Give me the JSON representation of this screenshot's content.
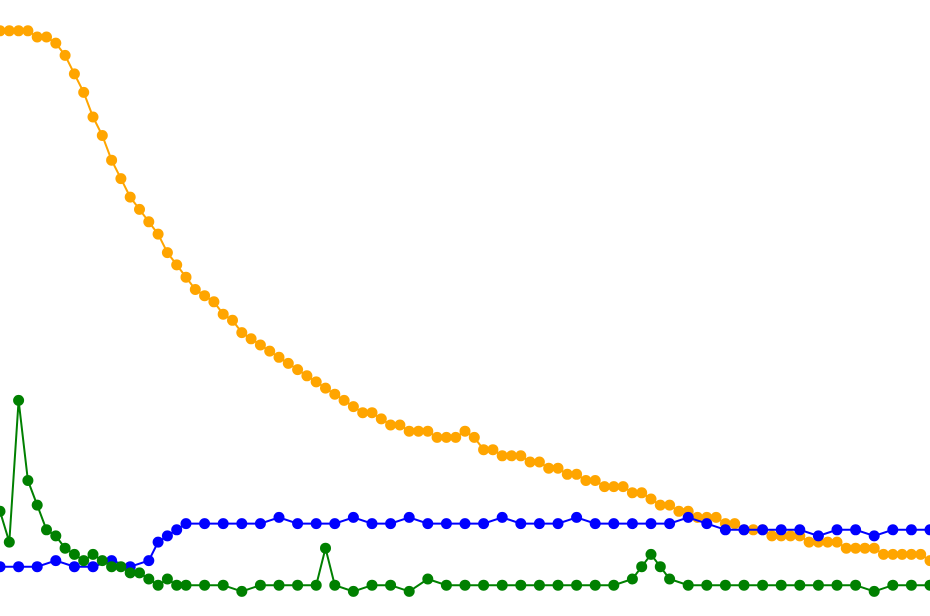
{
  "chart_data": {
    "type": "line",
    "title": "",
    "xlabel": "",
    "ylabel": "",
    "grid": false,
    "legend": "none",
    "xlim": [
      0,
      100
    ],
    "ylim": [
      0,
      100
    ],
    "series": [
      {
        "color": "#FFA500",
        "marker": "circle",
        "points": [
          [
            0,
            95
          ],
          [
            1,
            95
          ],
          [
            2,
            95
          ],
          [
            3,
            95
          ],
          [
            4,
            94
          ],
          [
            5,
            94
          ],
          [
            6,
            93
          ],
          [
            7,
            91
          ],
          [
            8,
            88
          ],
          [
            9,
            85
          ],
          [
            10,
            81
          ],
          [
            11,
            78
          ],
          [
            12,
            74
          ],
          [
            13,
            71
          ],
          [
            14,
            68
          ],
          [
            15,
            66
          ],
          [
            16,
            64
          ],
          [
            17,
            62
          ],
          [
            18,
            59
          ],
          [
            19,
            57
          ],
          [
            20,
            55
          ],
          [
            21,
            53
          ],
          [
            22,
            52
          ],
          [
            23,
            51
          ],
          [
            24,
            49
          ],
          [
            25,
            48
          ],
          [
            26,
            46
          ],
          [
            27,
            45
          ],
          [
            28,
            44
          ],
          [
            29,
            43
          ],
          [
            30,
            42
          ],
          [
            31,
            41
          ],
          [
            32,
            40
          ],
          [
            33,
            39
          ],
          [
            34,
            38
          ],
          [
            35,
            37
          ],
          [
            36,
            36
          ],
          [
            37,
            35
          ],
          [
            38,
            34
          ],
          [
            39,
            33
          ],
          [
            40,
            33
          ],
          [
            41,
            32
          ],
          [
            42,
            31
          ],
          [
            43,
            31
          ],
          [
            44,
            30
          ],
          [
            45,
            30
          ],
          [
            46,
            30
          ],
          [
            47,
            29
          ],
          [
            48,
            29
          ],
          [
            49,
            29
          ],
          [
            50,
            30
          ],
          [
            51,
            29
          ],
          [
            52,
            27
          ],
          [
            53,
            27
          ],
          [
            54,
            26
          ],
          [
            55,
            26
          ],
          [
            56,
            26
          ],
          [
            57,
            25
          ],
          [
            58,
            25
          ],
          [
            59,
            24
          ],
          [
            60,
            24
          ],
          [
            61,
            23
          ],
          [
            62,
            23
          ],
          [
            63,
            22
          ],
          [
            64,
            22
          ],
          [
            65,
            21
          ],
          [
            66,
            21
          ],
          [
            67,
            21
          ],
          [
            68,
            20
          ],
          [
            69,
            20
          ],
          [
            70,
            19
          ],
          [
            71,
            18
          ],
          [
            72,
            18
          ],
          [
            73,
            17
          ],
          [
            74,
            17
          ],
          [
            75,
            16
          ],
          [
            76,
            16
          ],
          [
            77,
            16
          ],
          [
            78,
            15
          ],
          [
            79,
            15
          ],
          [
            80,
            14
          ],
          [
            81,
            14
          ],
          [
            82,
            14
          ],
          [
            83,
            13
          ],
          [
            84,
            13
          ],
          [
            85,
            13
          ],
          [
            86,
            13
          ],
          [
            87,
            12
          ],
          [
            88,
            12
          ],
          [
            89,
            12
          ],
          [
            90,
            12
          ],
          [
            91,
            11
          ],
          [
            92,
            11
          ],
          [
            93,
            11
          ],
          [
            94,
            11
          ],
          [
            95,
            10
          ],
          [
            96,
            10
          ],
          [
            97,
            10
          ],
          [
            98,
            10
          ],
          [
            99,
            10
          ],
          [
            100,
            9
          ]
        ]
      },
      {
        "color": "#0000FF",
        "marker": "circle",
        "points": [
          [
            0,
            8
          ],
          [
            2,
            8
          ],
          [
            4,
            8
          ],
          [
            6,
            9
          ],
          [
            8,
            8
          ],
          [
            10,
            8
          ],
          [
            12,
            9
          ],
          [
            14,
            8
          ],
          [
            16,
            9
          ],
          [
            17,
            12
          ],
          [
            18,
            13
          ],
          [
            19,
            14
          ],
          [
            20,
            15
          ],
          [
            22,
            15
          ],
          [
            24,
            15
          ],
          [
            26,
            15
          ],
          [
            28,
            15
          ],
          [
            30,
            16
          ],
          [
            32,
            15
          ],
          [
            34,
            15
          ],
          [
            36,
            15
          ],
          [
            38,
            16
          ],
          [
            40,
            15
          ],
          [
            42,
            15
          ],
          [
            44,
            16
          ],
          [
            46,
            15
          ],
          [
            48,
            15
          ],
          [
            50,
            15
          ],
          [
            52,
            15
          ],
          [
            54,
            16
          ],
          [
            56,
            15
          ],
          [
            58,
            15
          ],
          [
            60,
            15
          ],
          [
            62,
            16
          ],
          [
            64,
            15
          ],
          [
            66,
            15
          ],
          [
            68,
            15
          ],
          [
            70,
            15
          ],
          [
            72,
            15
          ],
          [
            74,
            16
          ],
          [
            76,
            15
          ],
          [
            78,
            14
          ],
          [
            80,
            14
          ],
          [
            82,
            14
          ],
          [
            84,
            14
          ],
          [
            86,
            14
          ],
          [
            88,
            13
          ],
          [
            90,
            14
          ],
          [
            92,
            14
          ],
          [
            94,
            13
          ],
          [
            96,
            14
          ],
          [
            98,
            14
          ],
          [
            100,
            14
          ]
        ]
      },
      {
        "color": "#008000",
        "marker": "circle",
        "points": [
          [
            0,
            17
          ],
          [
            1,
            12
          ],
          [
            2,
            35
          ],
          [
            3,
            22
          ],
          [
            4,
            18
          ],
          [
            5,
            14
          ],
          [
            6,
            13
          ],
          [
            7,
            11
          ],
          [
            8,
            10
          ],
          [
            9,
            9
          ],
          [
            10,
            10
          ],
          [
            11,
            9
          ],
          [
            12,
            8
          ],
          [
            13,
            8
          ],
          [
            14,
            7
          ],
          [
            15,
            7
          ],
          [
            16,
            6
          ],
          [
            17,
            5
          ],
          [
            18,
            6
          ],
          [
            19,
            5
          ],
          [
            20,
            5
          ],
          [
            22,
            5
          ],
          [
            24,
            5
          ],
          [
            26,
            4
          ],
          [
            28,
            5
          ],
          [
            30,
            5
          ],
          [
            32,
            5
          ],
          [
            34,
            5
          ],
          [
            35,
            11
          ],
          [
            36,
            5
          ],
          [
            38,
            4
          ],
          [
            40,
            5
          ],
          [
            42,
            5
          ],
          [
            44,
            4
          ],
          [
            46,
            6
          ],
          [
            48,
            5
          ],
          [
            50,
            5
          ],
          [
            52,
            5
          ],
          [
            54,
            5
          ],
          [
            56,
            5
          ],
          [
            58,
            5
          ],
          [
            60,
            5
          ],
          [
            62,
            5
          ],
          [
            64,
            5
          ],
          [
            66,
            5
          ],
          [
            68,
            6
          ],
          [
            69,
            8
          ],
          [
            70,
            10
          ],
          [
            71,
            8
          ],
          [
            72,
            6
          ],
          [
            74,
            5
          ],
          [
            76,
            5
          ],
          [
            78,
            5
          ],
          [
            80,
            5
          ],
          [
            82,
            5
          ],
          [
            84,
            5
          ],
          [
            86,
            5
          ],
          [
            88,
            5
          ],
          [
            90,
            5
          ],
          [
            92,
            5
          ],
          [
            94,
            4
          ],
          [
            96,
            5
          ],
          [
            98,
            5
          ],
          [
            100,
            5
          ]
        ]
      }
    ]
  }
}
